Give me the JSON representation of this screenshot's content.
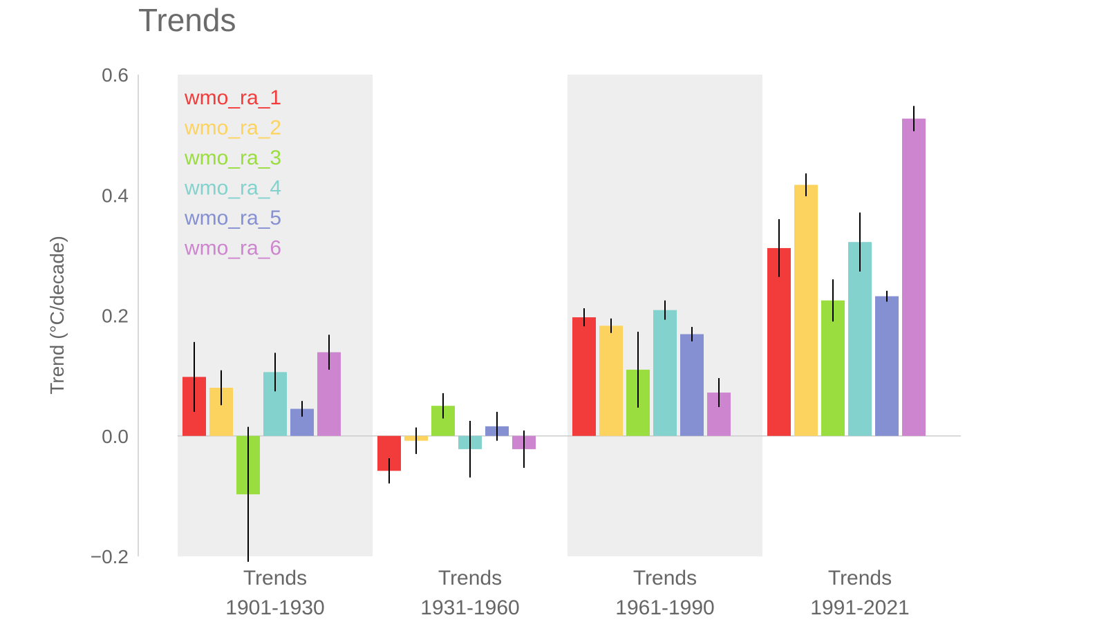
{
  "chart_data": {
    "type": "bar",
    "title": "Trends",
    "xlabel": "",
    "ylabel": "Trend (°C/decade)",
    "ylim": [
      -0.2,
      0.6
    ],
    "yticks": [
      "−0.2",
      "0.0",
      "0.2",
      "0.4",
      "0.6"
    ],
    "categories": [
      [
        "Trends",
        "1901-1930"
      ],
      [
        "Trends",
        "1931-1960"
      ],
      [
        "Trends",
        "1961-1990"
      ],
      [
        "Trends",
        "1991-2021"
      ]
    ],
    "shaded_categories": [
      0,
      2
    ],
    "legend_position": "top-left",
    "error_bars": true,
    "series": [
      {
        "name": "wmo_ra_1",
        "color": "#f23b3b",
        "values": [
          0.098,
          -0.058,
          0.197,
          0.312
        ],
        "err": [
          0.058,
          0.021,
          0.015,
          0.048
        ]
      },
      {
        "name": "wmo_ra_2",
        "color": "#fdd35f",
        "values": [
          0.08,
          -0.008,
          0.183,
          0.417
        ],
        "err": [
          0.029,
          0.022,
          0.012,
          0.019
        ]
      },
      {
        "name": "wmo_ra_3",
        "color": "#99dd3f",
        "values": [
          -0.097,
          0.05,
          0.11,
          0.225
        ],
        "err": [
          0.112,
          0.021,
          0.063,
          0.035
        ]
      },
      {
        "name": "wmo_ra_4",
        "color": "#83d2cd",
        "values": [
          0.106,
          -0.022,
          0.209,
          0.322
        ],
        "err": [
          0.032,
          0.047,
          0.016,
          0.049
        ]
      },
      {
        "name": "wmo_ra_5",
        "color": "#8590d2",
        "values": [
          0.045,
          0.016,
          0.169,
          0.232
        ],
        "err": [
          0.013,
          0.024,
          0.012,
          0.009
        ]
      },
      {
        "name": "wmo_ra_6",
        "color": "#cd85cf",
        "values": [
          0.139,
          -0.022,
          0.072,
          0.527
        ],
        "err": [
          0.029,
          0.031,
          0.024,
          0.021
        ]
      }
    ]
  }
}
